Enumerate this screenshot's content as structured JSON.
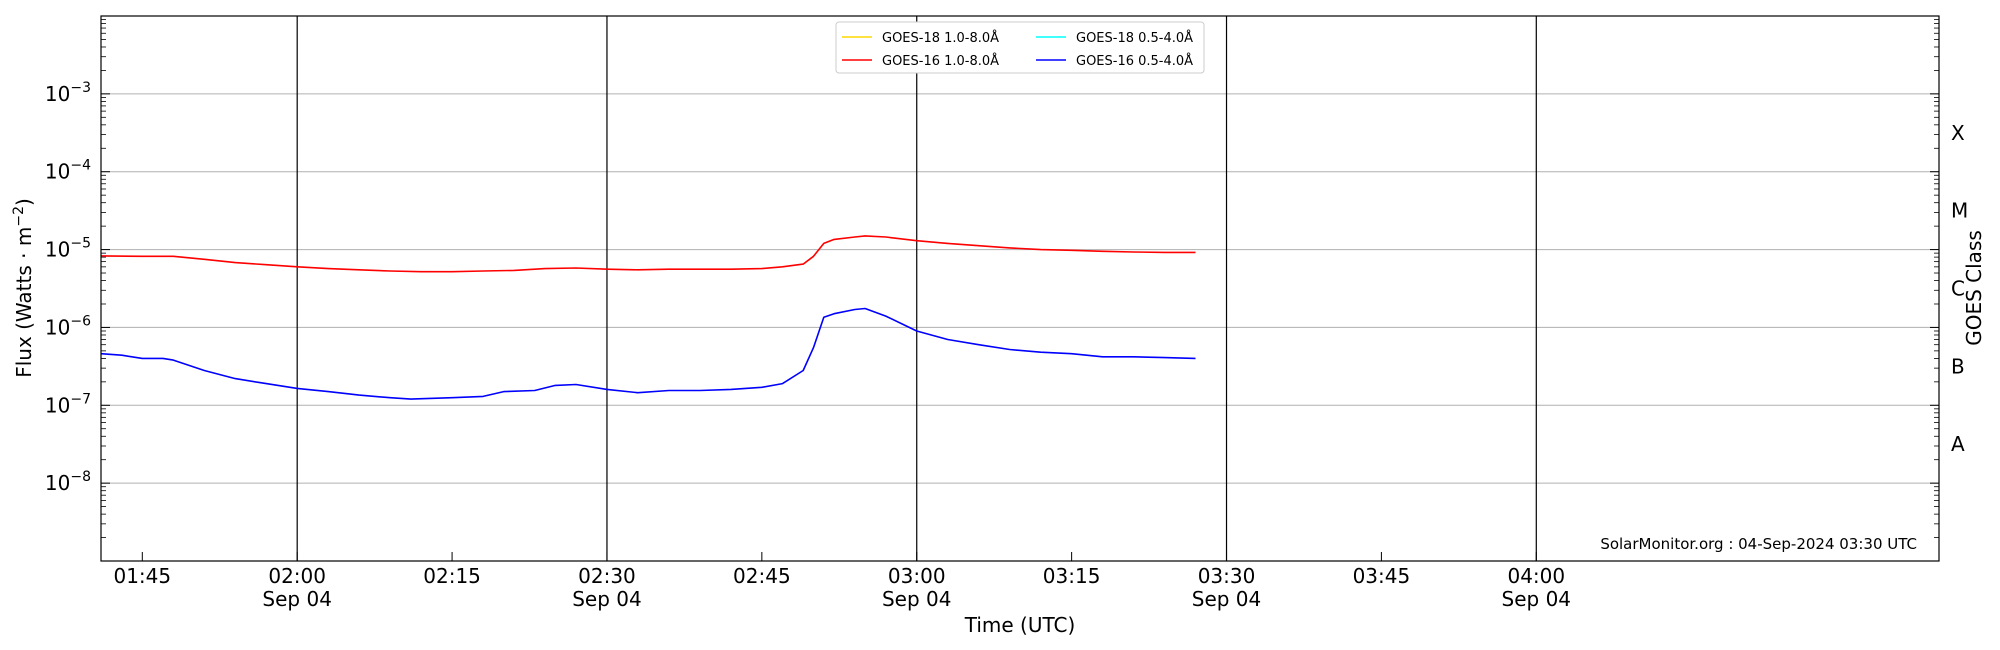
{
  "chart_data": {
    "type": "line",
    "x_axis": {
      "label": "Time (UTC)",
      "range": [
        "01:41",
        "04:39"
      ],
      "ticks": [
        {
          "time": "01:45",
          "label": "01:45",
          "sublabel": ""
        },
        {
          "time": "02:00",
          "label": "02:00",
          "sublabel": "Sep 04"
        },
        {
          "time": "02:15",
          "label": "02:15",
          "sublabel": ""
        },
        {
          "time": "02:30",
          "label": "02:30",
          "sublabel": "Sep 04"
        },
        {
          "time": "02:45",
          "label": "02:45",
          "sublabel": ""
        },
        {
          "time": "03:00",
          "label": "03:00",
          "sublabel": "Sep 04"
        },
        {
          "time": "03:15",
          "label": "03:15",
          "sublabel": ""
        },
        {
          "time": "03:30",
          "label": "03:30",
          "sublabel": "Sep 04"
        },
        {
          "time": "03:45",
          "label": "03:45",
          "sublabel": ""
        },
        {
          "time": "04:00",
          "label": "04:00",
          "sublabel": "Sep 04"
        }
      ],
      "vertical_lines": [
        "02:00",
        "02:30",
        "03:00",
        "03:30",
        "04:00"
      ]
    },
    "y_axis": {
      "label": "Flux (Watts · m",
      "label_superscript": "−2",
      "label_suffix": ")",
      "scale": "log",
      "range": [
        1e-09,
        0.01
      ],
      "ticks": [
        {
          "value": 0.001,
          "base": "10",
          "exp": "−3"
        },
        {
          "value": 0.0001,
          "base": "10",
          "exp": "−4"
        },
        {
          "value": 1e-05,
          "base": "10",
          "exp": "−5"
        },
        {
          "value": 1e-06,
          "base": "10",
          "exp": "−6"
        },
        {
          "value": 1e-07,
          "base": "10",
          "exp": "−7"
        },
        {
          "value": 1e-08,
          "base": "10",
          "exp": "−8"
        }
      ],
      "grid": true
    },
    "right_axis": {
      "label": "GOES Class",
      "classes": [
        {
          "label": "X",
          "value": 0.000316
        },
        {
          "label": "M",
          "value": 3.16e-05
        },
        {
          "label": "C",
          "value": 3.16e-06
        },
        {
          "label": "B",
          "value": 3.16e-07
        },
        {
          "label": "A",
          "value": 3.16e-08
        }
      ]
    },
    "legend": {
      "placement": "top-center",
      "entries": [
        {
          "name": "GOES-18 1.0-8.0Å",
          "color": "#FFD700"
        },
        {
          "name": "GOES-18 0.5-4.0Å",
          "color": "#00FFFF"
        },
        {
          "name": "GOES-16 1.0-8.0Å",
          "color": "#FF0000"
        },
        {
          "name": "GOES-16 0.5-4.0Å",
          "color": "#0000FF"
        }
      ]
    },
    "series": [
      {
        "name": "GOES-16 1.0-8.0Å",
        "color": "#FF0000",
        "x": [
          "01:41",
          "01:45",
          "01:48",
          "01:51",
          "01:54",
          "01:57",
          "02:00",
          "02:03",
          "02:06",
          "02:09",
          "02:12",
          "02:15",
          "02:18",
          "02:21",
          "02:24",
          "02:27",
          "02:30",
          "02:33",
          "02:36",
          "02:39",
          "02:42",
          "02:45",
          "02:47",
          "02:49",
          "02:50",
          "02:51",
          "02:52",
          "02:54",
          "02:55",
          "02:57",
          "03:00",
          "03:03",
          "03:06",
          "03:09",
          "03:12",
          "03:15",
          "03:18",
          "03:21",
          "03:24",
          "03:27"
        ],
        "values": [
          8.3e-06,
          8.2e-06,
          8.2e-06,
          7.5e-06,
          6.8e-06,
          6.4e-06,
          6e-06,
          5.7e-06,
          5.5e-06,
          5.3e-06,
          5.2e-06,
          5.2e-06,
          5.3e-06,
          5.4e-06,
          5.7e-06,
          5.8e-06,
          5.6e-06,
          5.5e-06,
          5.6e-06,
          5.6e-06,
          5.6e-06,
          5.7e-06,
          6e-06,
          6.5e-06,
          8.2e-06,
          1.2e-05,
          1.35e-05,
          1.45e-05,
          1.5e-05,
          1.45e-05,
          1.3e-05,
          1.2e-05,
          1.12e-05,
          1.05e-05,
          1e-05,
          9.8e-06,
          9.5e-06,
          9.3e-06,
          9.2e-06,
          9.2e-06
        ]
      },
      {
        "name": "GOES-16 0.5-4.0Å",
        "color": "#0000FF",
        "x": [
          "01:41",
          "01:43",
          "01:45",
          "01:47",
          "01:48",
          "01:51",
          "01:54",
          "01:57",
          "02:00",
          "02:03",
          "02:06",
          "02:09",
          "02:11",
          "02:15",
          "02:18",
          "02:20",
          "02:23",
          "02:25",
          "02:27",
          "02:30",
          "02:33",
          "02:36",
          "02:39",
          "02:42",
          "02:45",
          "02:47",
          "02:49",
          "02:50",
          "02:51",
          "02:52",
          "02:54",
          "02:55",
          "02:57",
          "03:00",
          "03:03",
          "03:06",
          "03:09",
          "03:12",
          "03:15",
          "03:18",
          "03:21",
          "03:24",
          "03:27"
        ],
        "values": [
          4.6e-07,
          4.4e-07,
          4e-07,
          4e-07,
          3.8e-07,
          2.8e-07,
          2.2e-07,
          1.9e-07,
          1.65e-07,
          1.5e-07,
          1.35e-07,
          1.25e-07,
          1.2e-07,
          1.25e-07,
          1.3e-07,
          1.5e-07,
          1.55e-07,
          1.8e-07,
          1.85e-07,
          1.6e-07,
          1.45e-07,
          1.55e-07,
          1.55e-07,
          1.6e-07,
          1.7e-07,
          1.9e-07,
          2.8e-07,
          5.5e-07,
          1.35e-06,
          1.5e-06,
          1.7e-06,
          1.75e-06,
          1.4e-06,
          9e-07,
          7e-07,
          6e-07,
          5.2e-07,
          4.8e-07,
          4.6e-07,
          4.2e-07,
          4.2e-07,
          4.1e-07,
          4e-07
        ]
      }
    ],
    "credit": "SolarMonitor.org : 04-Sep-2024 03:30 UTC"
  }
}
